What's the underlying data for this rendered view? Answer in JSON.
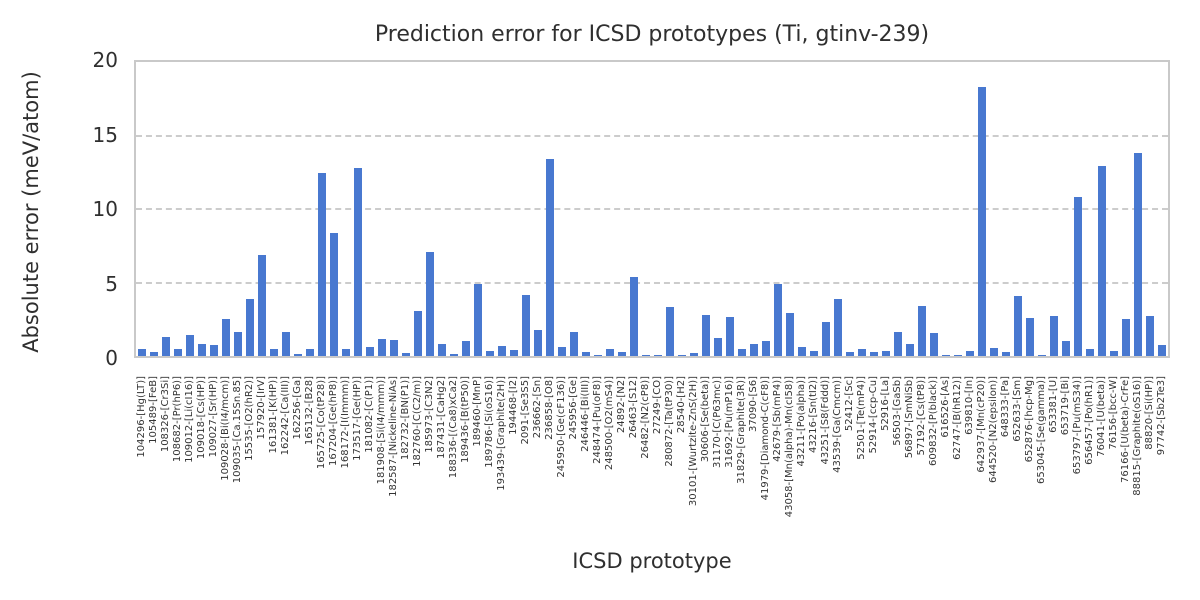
{
  "chart_data": {
    "type": "bar",
    "title": "Prediction error for ICSD prototypes (Ti, gtinv-239)",
    "xlabel": "ICSD prototype",
    "ylabel": "Absolute error (meV/atom)",
    "ylim": [
      0,
      20
    ],
    "yticks": [
      0,
      5,
      10,
      15,
      20
    ],
    "grid": "horizontal-dashed",
    "legend": "none",
    "bar_color": "#4878d0",
    "categories": [
      "104296-[Hg(LT)]",
      "105489-[FeB]",
      "108326-[Cr3Si]",
      "108682-[Pr(hP6)]",
      "109012-[Li(cI16)]",
      "109018-[Cs(HP)]",
      "109027-[Sr(HP)]",
      "109028-[Bi(I4/mcm)]",
      "109035-[Ca.15Sn.85]",
      "15535-[O2(hR2)]",
      "157920-[IrV]",
      "161381-[K(HP)]",
      "162242-[Ca(III)]",
      "162256-[Ga]",
      "165132-[B28]",
      "165725-[Co(tP28)]",
      "167204-[Ge(hP8)]",
      "168172-[I(Immm)]",
      "173517-[Ge(HP)]",
      "181082-[C(P1)]",
      "181908-[Si(I4/mmm)]",
      "182587-[Nickeline-NiAs]",
      "182732-[BN(P1)]",
      "182760-[C(C2/m)]",
      "185973-[C3N2]",
      "187431-[CaHg2]",
      "188336-[(Ca8)xCa2]",
      "189436-[B(tP50)]",
      "189460-[MnP]",
      "189786-[Si(oS16)]",
      "193439-[Graphite(2H)]",
      "194468-[I2]",
      "2091-[Se3S5]",
      "236662-[Sn]",
      "236858-[O8]",
      "245950-[Ge(cF136)]",
      "245956-[Ge]",
      "246446-[Bi(III)]",
      "248474-[Pu(oF8)]",
      "248500-[O2(mS4)]",
      "24892-[N2]",
      "26463-[S12]",
      "26482-[N2(cP8)]",
      "27249-[CO]",
      "280872-[Ta(tP30)]",
      "28540-[H2]",
      "30101-[Wurtzite-ZnS(2H)]",
      "30606-[Se(beta)]",
      "31170-[C(P63mc)]",
      "31692-[Pu(mP16)]",
      "31829-[Graphite(3R)]",
      "37090-[S6]",
      "41979-[Diamond-C(cF8)]",
      "42679-[Sb(mP4)]",
      "43058-[Mn(alpha)-Mn(cI58)]",
      "43211-[Po(alpha)]",
      "43216-[Sn(tI2)]",
      "43251-[S8(Fddd)]",
      "43539-[Ga(Cmcm)]",
      "52412-[Sc]",
      "52501-[Te(mP4)]",
      "52914-[ccp-Cu]",
      "52916-[La]",
      "56503-[GaSb]",
      "56897-[SmNiSb]",
      "57192-[Cs(tP8)]",
      "609832-[P(black)]",
      "616526-[As]",
      "62747-[B(hR12)]",
      "639810-[In]",
      "642937-[Mn(cP20)]",
      "644520-[N2(epsilon)]",
      "648333-[Pa]",
      "652633-[Sm]",
      "652876-[hcp-Mg]",
      "653045-[Se(gamma)]",
      "653381-[U]",
      "653719-[Bi]",
      "653797-[Pu(mS34)]",
      "656457-[Po(hR1)]",
      "76041-[U(beta)]",
      "76156-[bcc-W]",
      "76166-[U(beta)-CrFe]",
      "88815-[Graphite(oS16)]",
      "88820-[Si(HP)]",
      "97742-[Sb2Te3]"
    ],
    "values": [
      0.45,
      0.25,
      1.3,
      0.45,
      1.45,
      0.85,
      0.75,
      2.55,
      1.6,
      3.85,
      6.85,
      0.45,
      1.6,
      0.15,
      0.5,
      12.45,
      8.4,
      0.45,
      12.8,
      0.6,
      1.15,
      1.1,
      0.2,
      3.05,
      7.05,
      0.8,
      0.15,
      1.0,
      4.9,
      0.35,
      0.7,
      0.4,
      4.15,
      1.75,
      13.4,
      0.6,
      1.6,
      0.3,
      0.1,
      0.5,
      0.25,
      5.4,
      0.05,
      0.1,
      3.35,
      0.05,
      0.2,
      2.8,
      1.25,
      2.65,
      0.5,
      0.85,
      1.05,
      4.9,
      2.95,
      0.6,
      0.35,
      2.3,
      3.85,
      0.3,
      0.45,
      0.25,
      0.35,
      1.65,
      0.8,
      3.4,
      1.55,
      0.1,
      0.05,
      0.35,
      18.3,
      0.55,
      0.3,
      4.05,
      2.6,
      0.1,
      2.7,
      1.05,
      10.85,
      0.5,
      12.95,
      0.35,
      2.5,
      13.8,
      2.7,
      0.75
    ]
  }
}
